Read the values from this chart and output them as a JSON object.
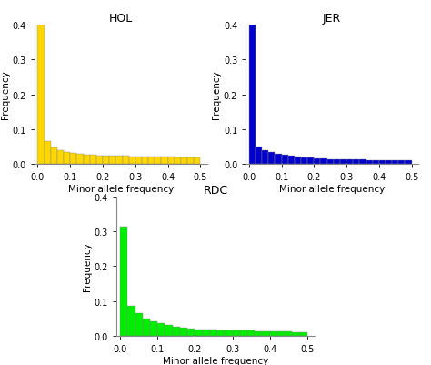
{
  "title_hol": "HOL",
  "title_jer": "JER",
  "title_rdc": "RDC",
  "xlabel": "Minor allele frequency",
  "ylabel": "Frequency",
  "color_hol": "#FFD700",
  "color_jer": "#0000CC",
  "color_rdc": "#00EE00",
  "edge_color": "#888888",
  "xlim": [
    -0.01,
    0.52
  ],
  "xticks": [
    0.0,
    0.1,
    0.2,
    0.3,
    0.4,
    0.5
  ],
  "hol_bars": [
    0.4,
    0.065,
    0.048,
    0.038,
    0.033,
    0.03,
    0.028,
    0.026,
    0.025,
    0.024,
    0.023,
    0.022,
    0.022,
    0.022,
    0.021,
    0.021,
    0.021,
    0.02,
    0.02,
    0.02,
    0.02,
    0.019,
    0.019,
    0.019,
    0.018
  ],
  "jer_bars": [
    0.46,
    0.05,
    0.038,
    0.033,
    0.028,
    0.025,
    0.022,
    0.02,
    0.018,
    0.017,
    0.016,
    0.015,
    0.014,
    0.014,
    0.013,
    0.013,
    0.012,
    0.012,
    0.011,
    0.011,
    0.011,
    0.01,
    0.01,
    0.01,
    0.01
  ],
  "rdc_bars": [
    0.315,
    0.085,
    0.065,
    0.05,
    0.042,
    0.036,
    0.03,
    0.026,
    0.023,
    0.02,
    0.019,
    0.018,
    0.017,
    0.016,
    0.015,
    0.015,
    0.014,
    0.014,
    0.013,
    0.013,
    0.012,
    0.012,
    0.012,
    0.011,
    0.011
  ],
  "ylim_hol": [
    0.0,
    0.4
  ],
  "ylim_jer": [
    0.0,
    0.4
  ],
  "ylim_rdc": [
    0.0,
    0.4
  ],
  "yticks_hol": [
    0.0,
    0.1,
    0.2,
    0.3,
    0.4
  ],
  "yticks_jer": [
    0.0,
    0.1,
    0.2,
    0.3,
    0.4
  ],
  "yticks_rdc": [
    0.0,
    0.1,
    0.2,
    0.3,
    0.4
  ],
  "background_color": "#ffffff",
  "title_fontsize": 9,
  "axis_fontsize": 7.5,
  "tick_fontsize": 7,
  "spine_color": "#888888"
}
